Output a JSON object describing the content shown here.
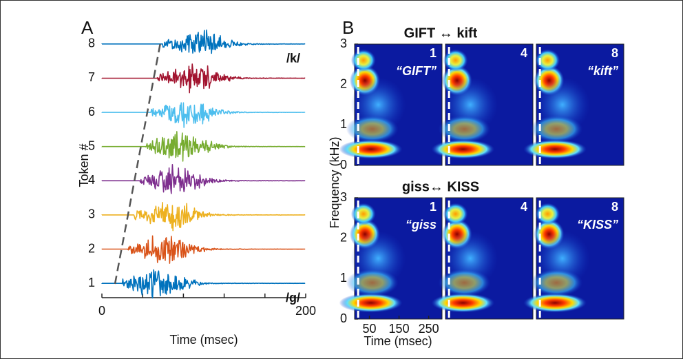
{
  "chart_data": [
    {
      "type": "waveform",
      "label": "A",
      "x_label": "Time (msec)",
      "y_label": "Token #",
      "xlim": [
        0,
        200
      ],
      "xticks": [
        0,
        200
      ],
      "minor_xticks": [
        40,
        80,
        120,
        160
      ],
      "ylim": [
        0.6,
        8.4
      ],
      "yticks": [
        1,
        2,
        3,
        4,
        5,
        6,
        7,
        8
      ],
      "colors": [
        "#0072bd",
        "#d95319",
        "#edb120",
        "#7e2f8e",
        "#77ac30",
        "#4dbeee",
        "#a2142f",
        "#0072bd"
      ],
      "annotations": [
        {
          "text": "/k/",
          "token": 8
        },
        {
          "text": "/g/",
          "token": 1
        }
      ]
    },
    {
      "type": "spectrogram",
      "label": "B",
      "x_label": "Time (msec)",
      "y_label": "Frequency (kHz)",
      "xlim": [
        0,
        295
      ],
      "xticks": [
        50,
        150,
        250
      ],
      "ylim": [
        0,
        3
      ],
      "yticks": [
        0,
        1,
        2,
        3
      ],
      "rows": [
        {
          "title": "GIFT ↔ kift",
          "panels": [
            {
              "token": 1,
              "word": "“GIFT”"
            },
            {
              "token": 4
            },
            {
              "token": 8,
              "word": "“kift”"
            }
          ]
        },
        {
          "title": "giss↔ KISS",
          "panels": [
            {
              "token": 1,
              "word": "“giss"
            },
            {
              "token": 4
            },
            {
              "token": 8,
              "word": "“KISS”"
            }
          ]
        }
      ]
    }
  ]
}
